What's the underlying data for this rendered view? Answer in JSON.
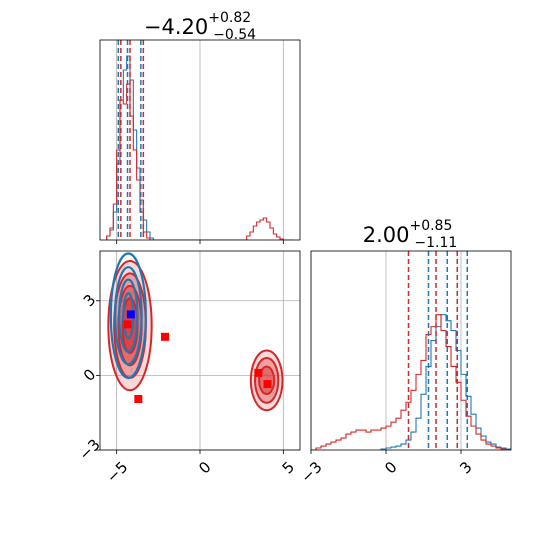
{
  "chart_data": [
    {
      "type": "histogram",
      "panel": "marginal-x",
      "title_main": "−4.20",
      "title_sup": "+0.82",
      "title_sub": "−0.54",
      "xlim": [
        -6.0,
        6.0
      ],
      "ylim": [
        0,
        1.0
      ],
      "grid": true,
      "vlines": [
        {
          "color": "#1f77b4",
          "values": [
            -4.9,
            -4.35,
            -3.55
          ]
        },
        {
          "color": "#d62728",
          "values": [
            -4.75,
            -4.2,
            -3.4
          ]
        }
      ],
      "series": [
        {
          "color": "#1f77b4",
          "bin_edges": [
            -5.6,
            -5.4,
            -5.2,
            -5.0,
            -4.8,
            -4.6,
            -4.4,
            -4.2,
            -4.0,
            -3.8,
            -3.6,
            -3.4,
            -3.2,
            -3.0,
            -2.8
          ],
          "counts": [
            0.02,
            0.05,
            0.14,
            0.38,
            0.7,
            0.85,
            0.92,
            0.8,
            0.55,
            0.36,
            0.2,
            0.1,
            0.04,
            0.01
          ]
        },
        {
          "color": "#d62728",
          "bin_edges": [
            -5.6,
            -5.4,
            -5.2,
            -5.0,
            -4.8,
            -4.6,
            -4.4,
            -4.2,
            -4.0,
            -3.8,
            -3.6,
            -3.4,
            -3.2,
            -3.0,
            -2.8,
            -2.6,
            -2.4,
            -2.2,
            -2.0,
            -1.8,
            -1.6,
            -1.4,
            -1.2,
            -1.0,
            -0.8,
            -0.6,
            -0.4,
            -0.2,
            0.0,
            0.2,
            0.4,
            0.6,
            0.8,
            1.0,
            1.2,
            1.4,
            1.6,
            1.8,
            2.0,
            2.2,
            2.4,
            2.6,
            2.8,
            3.0,
            3.2,
            3.4,
            3.6,
            3.8,
            4.0,
            4.2,
            4.4,
            4.6,
            4.8,
            5.0,
            5.2,
            5.4,
            5.6
          ],
          "counts": [
            0.02,
            0.06,
            0.18,
            0.45,
            0.7,
            0.68,
            0.78,
            0.62,
            0.45,
            0.3,
            0.14,
            0.04,
            0.01,
            0,
            0,
            0,
            0,
            0,
            0,
            0,
            0,
            0,
            0,
            0,
            0,
            0,
            0,
            0,
            0,
            0,
            0,
            0,
            0,
            0,
            0,
            0,
            0,
            0,
            0,
            0,
            0,
            0,
            0.02,
            0.04,
            0.07,
            0.09,
            0.1,
            0.11,
            0.09,
            0.06,
            0.03,
            0.015,
            0.005,
            0,
            0,
            0
          ]
        }
      ]
    },
    {
      "type": "histogram",
      "panel": "marginal-y",
      "title_main": "2.00",
      "title_sup": "+0.85",
      "title_sub": "−1.11",
      "xlim": [
        -3.0,
        5.0
      ],
      "ylim": [
        0,
        1.0
      ],
      "grid": true,
      "vlines": [
        {
          "color": "#1f77b4",
          "values": [
            1.7,
            2.45,
            3.25
          ]
        },
        {
          "color": "#d62728",
          "values": [
            0.9,
            2.0,
            2.85
          ]
        }
      ],
      "series": [
        {
          "color": "#1f77b4",
          "bin_edges": [
            -0.2,
            0.0,
            0.2,
            0.4,
            0.6,
            0.8,
            1.0,
            1.2,
            1.4,
            1.6,
            1.8,
            2.0,
            2.2,
            2.4,
            2.6,
            2.8,
            3.0,
            3.2,
            3.4,
            3.6,
            3.8,
            4.0,
            4.2,
            4.4,
            4.6,
            4.8,
            5.0
          ],
          "counts": [
            0.005,
            0.01,
            0.015,
            0.02,
            0.03,
            0.05,
            0.09,
            0.16,
            0.28,
            0.42,
            0.55,
            0.62,
            0.68,
            0.65,
            0.6,
            0.5,
            0.38,
            0.27,
            0.18,
            0.11,
            0.07,
            0.04,
            0.03,
            0.015,
            0.01,
            0.005
          ]
        },
        {
          "color": "#d62728",
          "bin_edges": [
            -3.0,
            -2.8,
            -2.6,
            -2.4,
            -2.2,
            -2.0,
            -1.8,
            -1.6,
            -1.4,
            -1.2,
            -1.0,
            -0.8,
            -0.6,
            -0.4,
            -0.2,
            0.0,
            0.2,
            0.4,
            0.6,
            0.8,
            1.0,
            1.2,
            1.4,
            1.6,
            1.8,
            2.0,
            2.2,
            2.4,
            2.6,
            2.8,
            3.0,
            3.2,
            3.4,
            3.6,
            3.8,
            4.0,
            4.2,
            4.4,
            4.6,
            4.8,
            5.0
          ],
          "counts": [
            0,
            0.01,
            0.02,
            0.03,
            0.04,
            0.05,
            0.06,
            0.08,
            0.09,
            0.1,
            0.1,
            0.09,
            0.1,
            0.1,
            0.11,
            0.12,
            0.14,
            0.16,
            0.2,
            0.24,
            0.3,
            0.38,
            0.45,
            0.58,
            0.62,
            0.68,
            0.6,
            0.52,
            0.42,
            0.34,
            0.25,
            0.17,
            0.12,
            0.08,
            0.05,
            0.03,
            0.02,
            0.01,
            0.005,
            0
          ]
        }
      ]
    },
    {
      "type": "scatter",
      "panel": "joint",
      "xlim": [
        -6.0,
        6.0
      ],
      "ylim": [
        -3.0,
        5.0
      ],
      "grid": true,
      "x_ticks": [
        "−5",
        "0",
        "5"
      ],
      "y_ticks": [
        "3",
        "0",
        "−3"
      ],
      "x_tick_values": [
        -5,
        0,
        5
      ],
      "y_tick_values": [
        3,
        0,
        -3
      ],
      "contours": [
        {
          "color": "#d62728",
          "cx": -4.2,
          "cy": 2.0,
          "rx": [
            1.3,
            0.95,
            0.7,
            0.45
          ],
          "ry": [
            2.6,
            2.1,
            1.6,
            1.1
          ]
        },
        {
          "color": "#d62728",
          "cx": 4.0,
          "cy": -0.2,
          "rx": [
            0.95,
            0.7,
            0.45
          ],
          "ry": [
            1.2,
            0.9,
            0.55
          ]
        },
        {
          "color": "#1f77b4",
          "cx": -4.3,
          "cy": 2.4,
          "rx": [
            1.05,
            0.8,
            0.55,
            0.3
          ],
          "ry": [
            2.5,
            1.95,
            1.45,
            0.9
          ]
        }
      ],
      "markers": [
        {
          "color": "#0000ff",
          "x": -4.15,
          "y": 2.45
        },
        {
          "color": "#ff0000",
          "x": -4.35,
          "y": 2.05
        },
        {
          "color": "#ff0000",
          "x": -2.1,
          "y": 1.55
        },
        {
          "color": "#ff0000",
          "x": -3.7,
          "y": -0.95
        },
        {
          "color": "#ff0000",
          "x": 3.5,
          "y": 0.1
        },
        {
          "color": "#ff0000",
          "x": 4.05,
          "y": -0.35
        }
      ]
    }
  ],
  "marginal_y_ticks": [
    "−3",
    "0",
    "3"
  ],
  "marginal_y_tick_values": [
    -3,
    0,
    3
  ]
}
